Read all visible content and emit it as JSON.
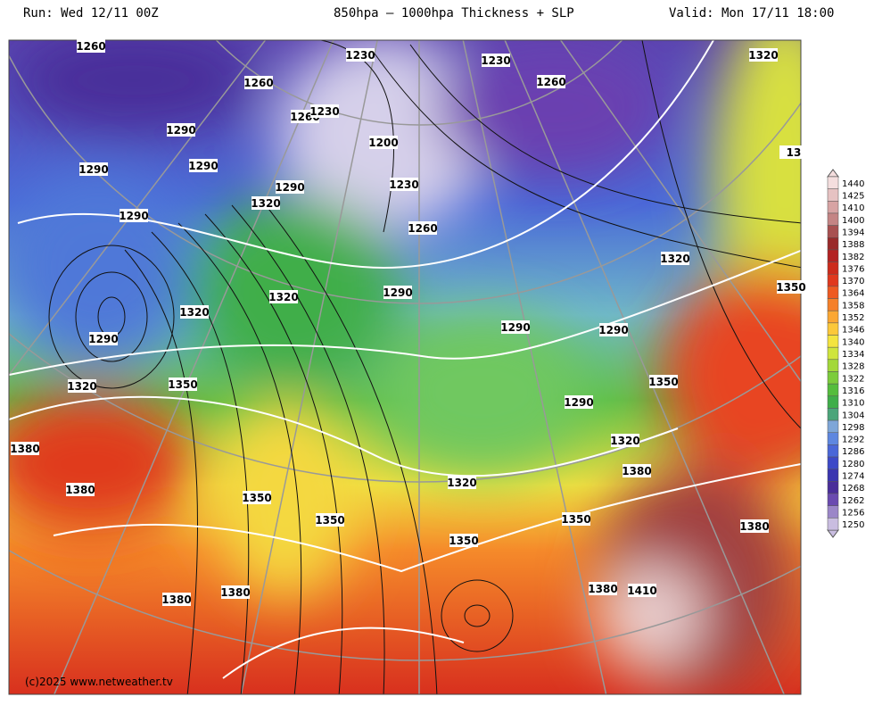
{
  "header": {
    "run": "Run: Wed 12/11 00Z",
    "title": "850hpa – 1000hpa Thickness + SLP",
    "valid": "Valid: Mon 17/11 18:00"
  },
  "colorbar": {
    "levels": [
      1440,
      1425,
      1410,
      1400,
      1394,
      1388,
      1382,
      1376,
      1370,
      1364,
      1358,
      1352,
      1346,
      1340,
      1334,
      1328,
      1322,
      1316,
      1310,
      1304,
      1298,
      1292,
      1286,
      1280,
      1274,
      1268,
      1262,
      1256,
      1250
    ],
    "colors": [
      "#f4dede",
      "#e6c2c2",
      "#d7a3a3",
      "#c48484",
      "#a85050",
      "#9a2a2a",
      "#b32222",
      "#cc2b1c",
      "#e0381e",
      "#ee5a22",
      "#f5802a",
      "#fba733",
      "#fcc83a",
      "#f4e43f",
      "#cfe53d",
      "#a3d83a",
      "#7ccc3b",
      "#55bd3c",
      "#3fae49",
      "#4ba57a",
      "#7ea6d8",
      "#5e87e0",
      "#4a67d8",
      "#3d49c8",
      "#3a35b0",
      "#4a2e9a",
      "#6a4ab0",
      "#9b86c8",
      "#c9bde0"
    ]
  },
  "contour_labels": [
    1260,
    1230,
    1230,
    1320,
    1260,
    1260,
    1260,
    1230,
    1290,
    1290,
    1290,
    1200,
    1230,
    1290,
    1320,
    1290,
    1260,
    1320,
    1320,
    1290,
    1320,
    1350,
    1290,
    1290,
    1290,
    1320,
    1350,
    1350,
    1290,
    1320,
    1380,
    1380,
    1320,
    1380,
    1350,
    1350,
    1350,
    1380,
    1350,
    1380,
    1410,
    1380,
    1380,
    13
  ],
  "credit": "(c)2025 www.netweather.tv"
}
